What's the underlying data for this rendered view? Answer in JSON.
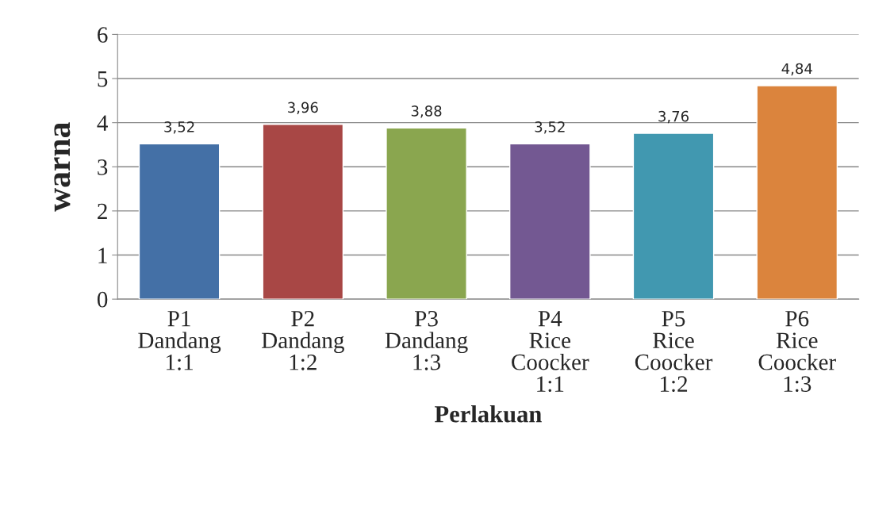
{
  "chart_data": {
    "type": "bar",
    "xlabel": "Perlakuan",
    "ylabel": "warna",
    "categories": [
      "P1\nDandang\n1:1",
      "P2\nDandang\n1:2",
      "P3\nDandang\n1:3",
      "P4\nRice\nCoocker\n1:1",
      "P5\nRice\nCoocker\n1:2",
      "P6\nRice\nCoocker\n1:3"
    ],
    "values": [
      3.52,
      3.96,
      3.88,
      3.52,
      3.76,
      4.84
    ],
    "colors": [
      "#4470a6",
      "#a84745",
      "#8aa64f",
      "#735892",
      "#4198b0",
      "#db843d"
    ],
    "value_labels": [
      "3,52",
      "3,96",
      "3,88",
      "3,52",
      "3,76",
      "4,84"
    ],
    "ylim": [
      0,
      6
    ],
    "yticks": [
      0,
      1,
      2,
      3,
      4,
      5,
      6
    ],
    "grid": "y",
    "legend": false
  }
}
